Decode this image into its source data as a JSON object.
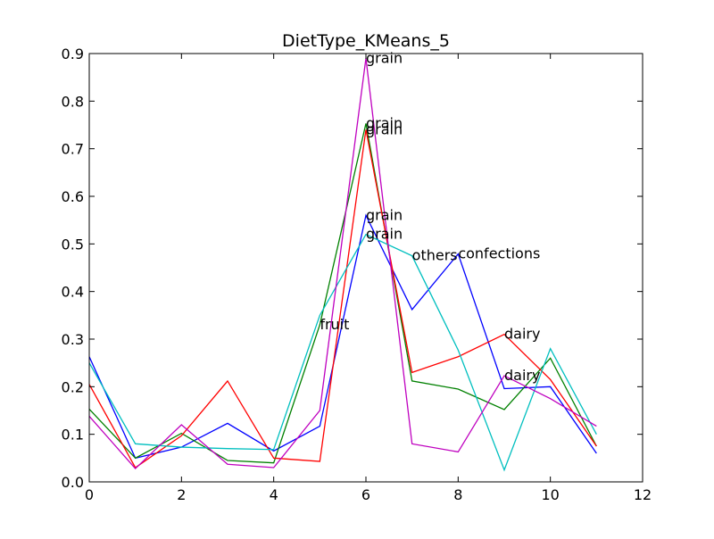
{
  "chart_data": {
    "type": "line",
    "title": "DietType_KMeans_5",
    "xlabel": "",
    "ylabel": "",
    "xlim": [
      0,
      12
    ],
    "ylim": [
      0,
      0.9
    ],
    "xticks": [
      "0",
      "2",
      "4",
      "6",
      "8",
      "10",
      "12"
    ],
    "yticks": [
      "0.0",
      "0.1",
      "0.2",
      "0.3",
      "0.4",
      "0.5",
      "0.6",
      "0.7",
      "0.8",
      "0.9"
    ],
    "grid": false,
    "x": [
      0,
      1,
      2,
      3,
      4,
      5,
      6,
      7,
      8,
      9,
      10,
      11
    ],
    "series": [
      {
        "color": "#0000ff",
        "values": [
          0.263,
          0.05,
          0.073,
          0.123,
          0.065,
          0.117,
          0.56,
          0.362,
          0.479,
          0.196,
          0.2,
          0.06
        ]
      },
      {
        "color": "#008000",
        "values": [
          0.153,
          0.05,
          0.102,
          0.045,
          0.04,
          0.33,
          0.753,
          0.212,
          0.195,
          0.152,
          0.26,
          0.075
        ]
      },
      {
        "color": "#ff0000",
        "values": [
          0.205,
          0.03,
          0.097,
          0.212,
          0.05,
          0.043,
          0.74,
          0.23,
          0.263,
          0.31,
          0.215,
          0.075
        ]
      },
      {
        "color": "#00bfbf",
        "values": [
          0.25,
          0.08,
          0.073,
          0.07,
          0.068,
          0.35,
          0.52,
          0.475,
          0.277,
          0.025,
          0.28,
          0.1
        ]
      },
      {
        "color": "#bf00bf",
        "values": [
          0.138,
          0.028,
          0.12,
          0.037,
          0.03,
          0.15,
          0.89,
          0.08,
          0.063,
          0.223,
          0.175,
          0.117
        ]
      }
    ],
    "annotations": [
      {
        "text": "grain",
        "x": 6,
        "y": 0.89
      },
      {
        "text": "grain",
        "x": 6,
        "y": 0.753
      },
      {
        "text": "grain",
        "x": 6,
        "y": 0.74
      },
      {
        "text": "grain",
        "x": 6,
        "y": 0.56
      },
      {
        "text": "grain",
        "x": 6,
        "y": 0.52
      },
      {
        "text": "fruit",
        "x": 5,
        "y": 0.33
      },
      {
        "text": "others",
        "x": 7,
        "y": 0.475
      },
      {
        "text": "confections",
        "x": 8,
        "y": 0.479
      },
      {
        "text": "dairy",
        "x": 9,
        "y": 0.31
      },
      {
        "text": "dairy",
        "x": 9,
        "y": 0.223
      }
    ]
  }
}
